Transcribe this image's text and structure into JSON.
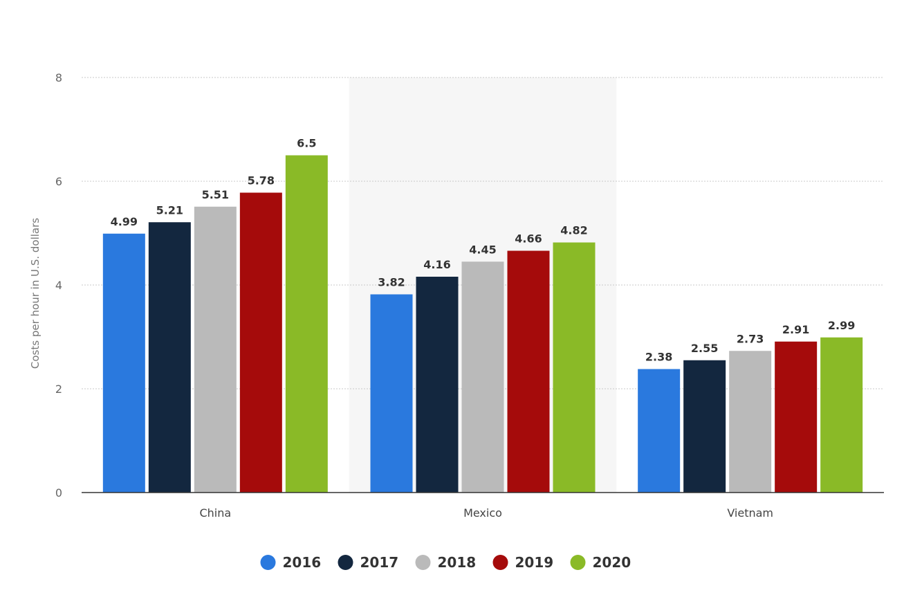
{
  "chart_data": {
    "type": "bar",
    "title": "",
    "xlabel": "",
    "ylabel": "Costs per hour in U.S. dollars",
    "ylim": [
      0,
      8
    ],
    "yticks": [
      0,
      2,
      4,
      6,
      8
    ],
    "grid": true,
    "legend_position": "bottom-center",
    "highlighted_category": "Mexico",
    "categories": [
      "China",
      "Mexico",
      "Vietnam"
    ],
    "series": [
      {
        "name": "2016",
        "color": "#2a79de",
        "values": [
          4.99,
          3.82,
          2.38
        ],
        "labels": [
          "4.99",
          "3.82",
          "2.38"
        ]
      },
      {
        "name": "2017",
        "color": "#13273f",
        "values": [
          5.21,
          4.16,
          2.55
        ],
        "labels": [
          "5.21",
          "4.16",
          "2.55"
        ]
      },
      {
        "name": "2018",
        "color": "#bababa",
        "values": [
          5.51,
          4.45,
          2.73
        ],
        "labels": [
          "5.51",
          "4.45",
          "2.73"
        ]
      },
      {
        "name": "2019",
        "color": "#a50b0b",
        "values": [
          5.78,
          4.66,
          2.91
        ],
        "labels": [
          "5.78",
          "4.66",
          "2.91"
        ]
      },
      {
        "name": "2020",
        "color": "#8aba27",
        "values": [
          6.5,
          4.82,
          2.99
        ],
        "labels": [
          "6.5",
          "4.82",
          "2.99"
        ]
      }
    ]
  }
}
